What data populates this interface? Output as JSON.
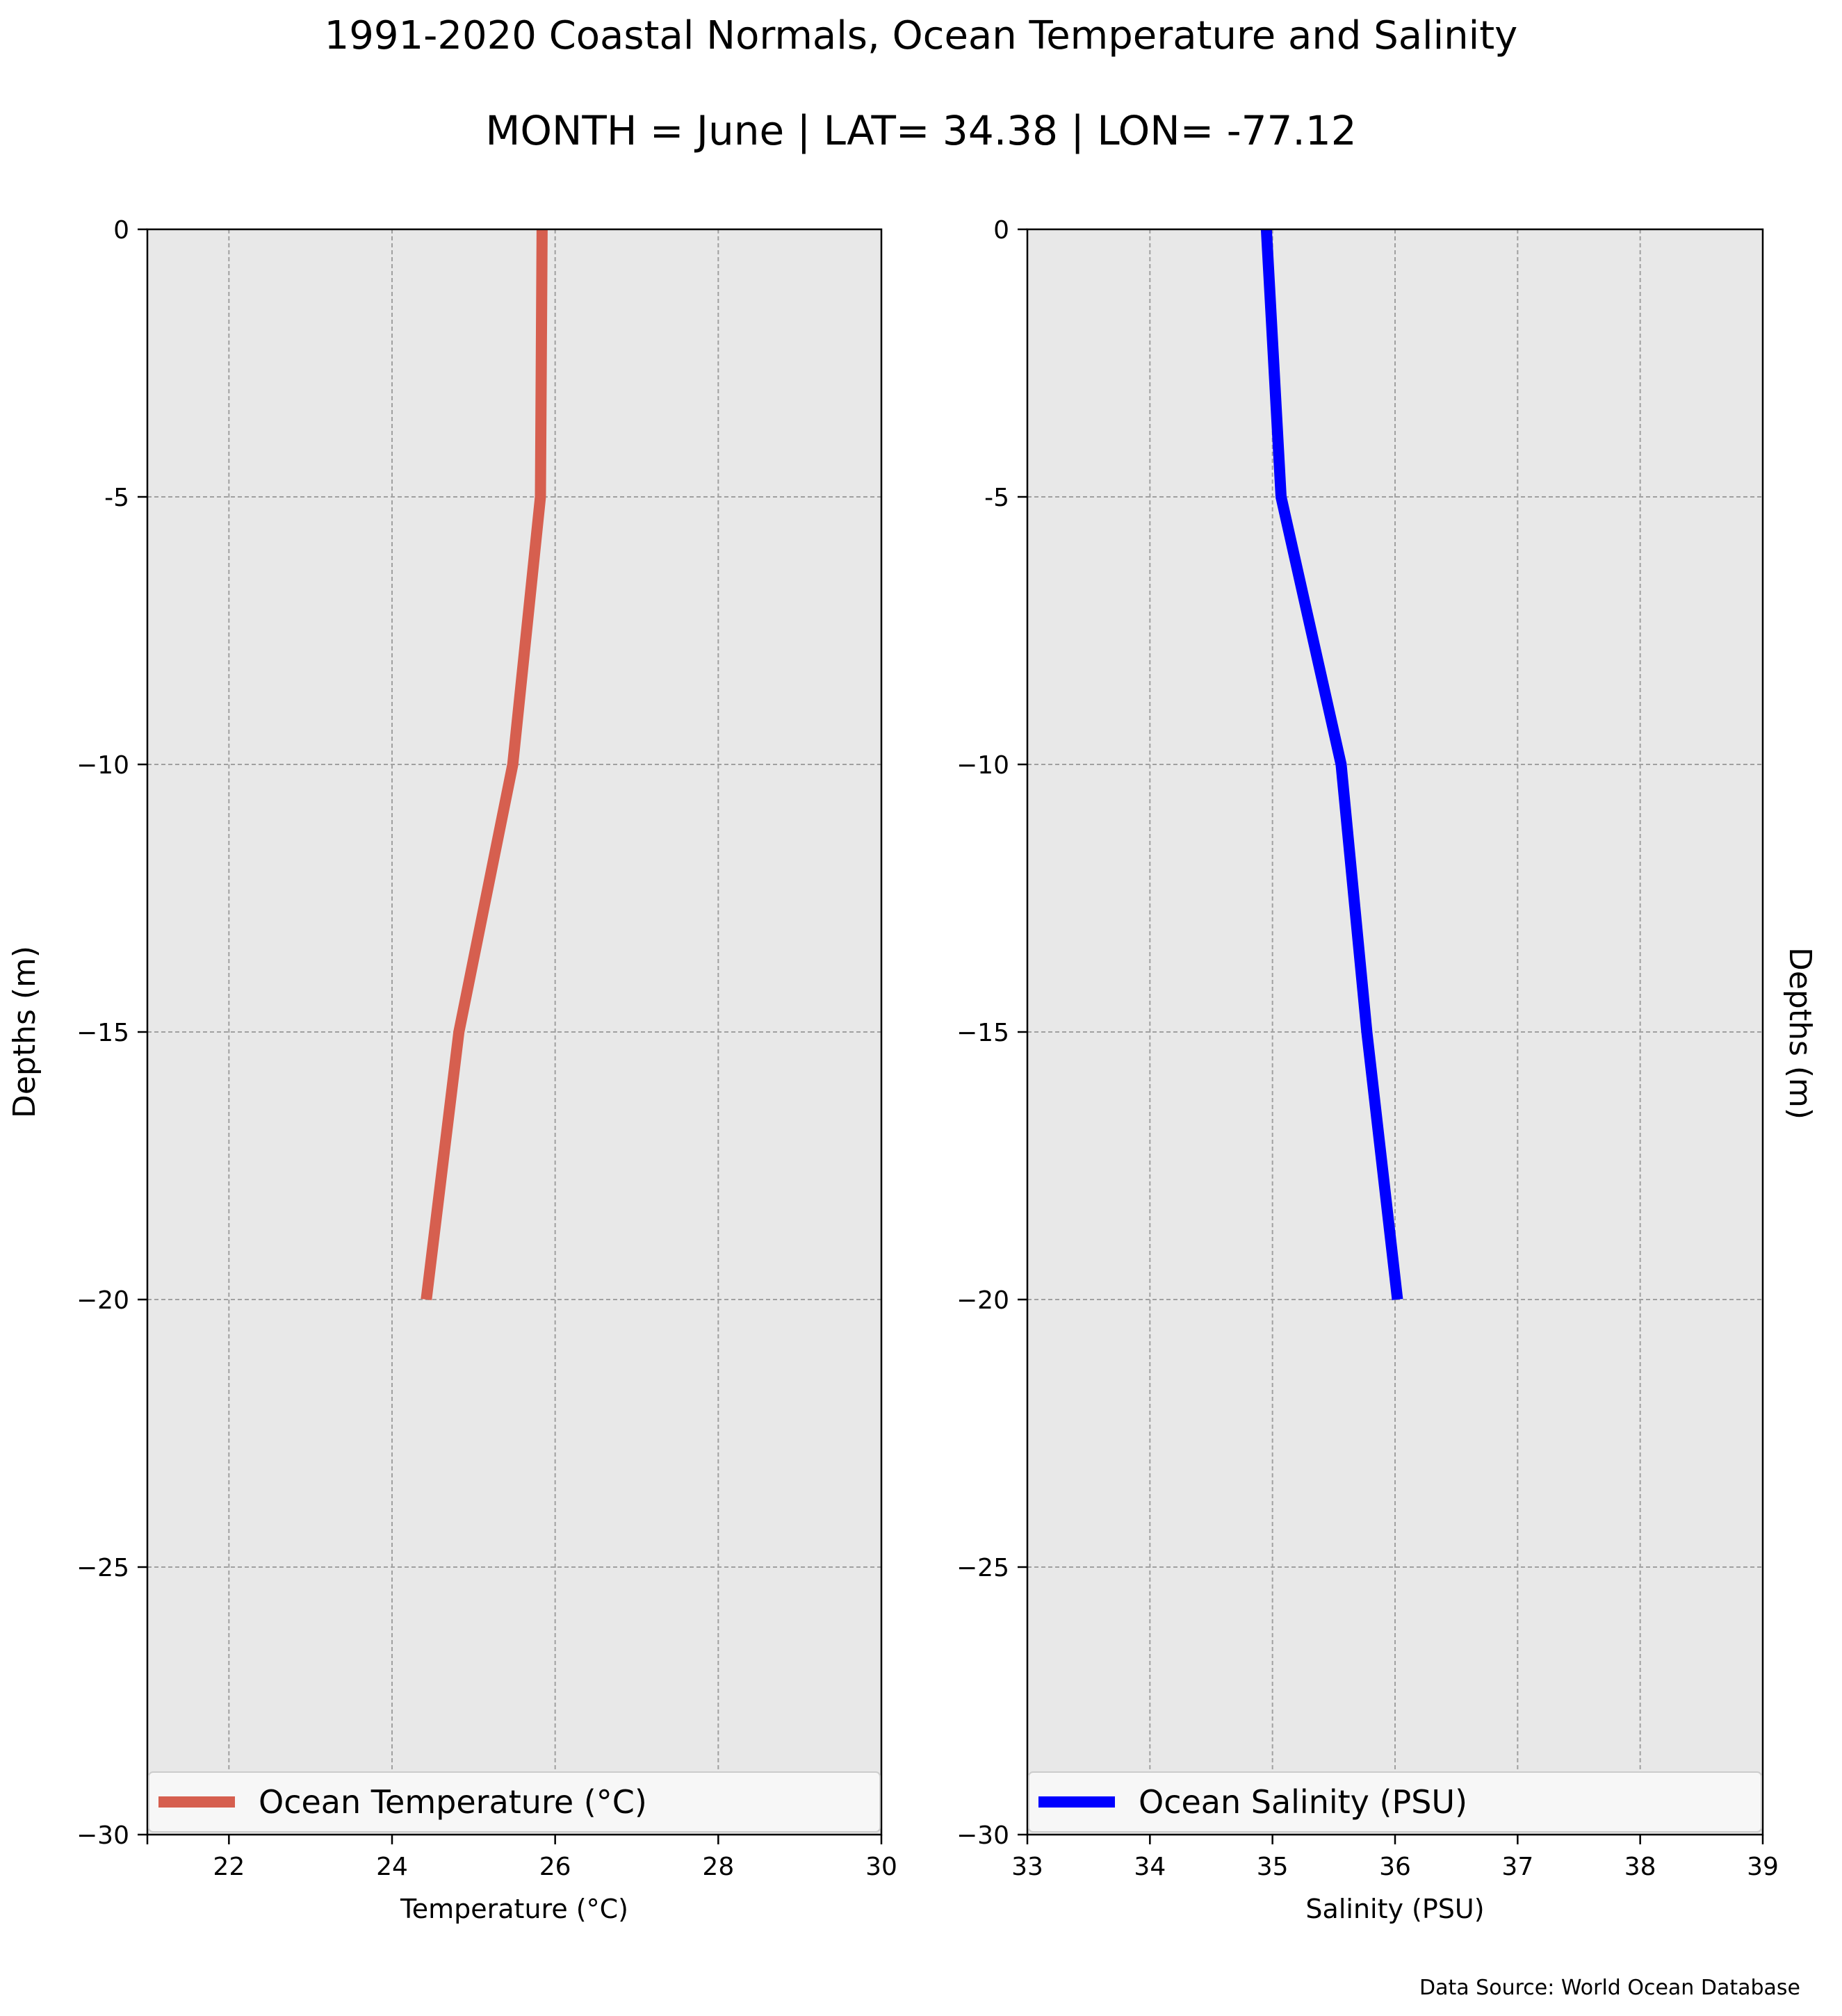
{
  "title": "1991-2020 Coastal Normals, Ocean Temperature and Salinity",
  "subtitle": "MONTH = June | LAT= 34.38 | LON= -77.12",
  "source_note": "Data Source: World Ocean Database",
  "chart_data": [
    {
      "type": "line",
      "xlabel": "Temperature ($^\\circ$C)",
      "xlabel_display": "Temperature (°C)",
      "ylabel": "Depths (m)",
      "xlim": [
        21,
        30
      ],
      "ylim": [
        -30,
        0
      ],
      "xticks": [
        22,
        24,
        26,
        28,
        30
      ],
      "yticks": [
        0,
        -5,
        -10,
        -15,
        -20,
        -25,
        -30
      ],
      "ytick_labels": [
        "0",
        "-5",
        "−10",
        "−15",
        "−20",
        "−25",
        "−30"
      ],
      "grid": true,
      "legend_position": "bottom",
      "series": [
        {
          "name": "Ocean Temperature (°C)",
          "color": "#d65f4f",
          "x": [
            25.84,
            25.82,
            25.48,
            24.82,
            24.42
          ],
          "y": [
            0,
            -5,
            -10,
            -15,
            -20
          ]
        }
      ]
    },
    {
      "type": "line",
      "xlabel": "Salinity (PSU)",
      "ylabel": "Depths (m)",
      "xlim": [
        33,
        39
      ],
      "ylim": [
        -30,
        0
      ],
      "xticks": [
        33,
        34,
        35,
        36,
        37,
        38,
        39
      ],
      "yticks": [
        0,
        -5,
        -10,
        -15,
        -20,
        -25,
        -30
      ],
      "ytick_labels": [
        "0",
        "-5",
        "−10",
        "−15",
        "−20",
        "−25",
        "−30"
      ],
      "grid": true,
      "legend_position": "bottom",
      "series": [
        {
          "name": "Ocean Salinity (PSU)",
          "color": "#0000ff",
          "x": [
            34.95,
            35.07,
            35.56,
            35.77,
            36.02
          ],
          "y": [
            0,
            -5,
            -10,
            -15,
            -20
          ]
        }
      ]
    }
  ],
  "colors": {
    "plot_background": "#e8e8e8",
    "grid": "#a0a0a0",
    "legend_background": "#f7f7f7"
  }
}
